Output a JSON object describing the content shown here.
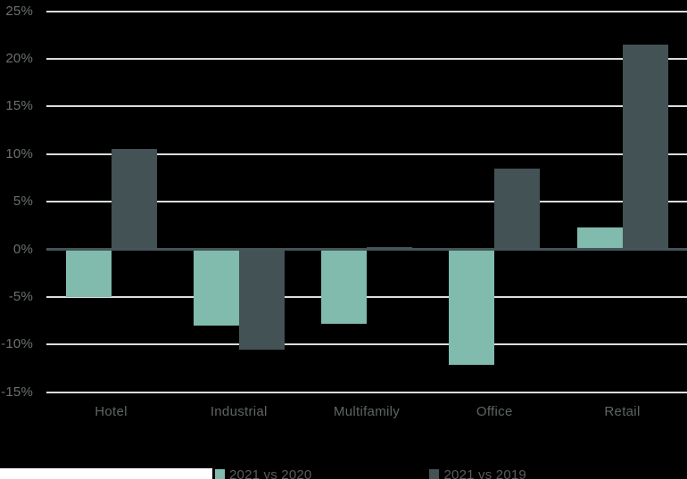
{
  "chart_data": {
    "type": "bar",
    "title": "",
    "categories": [
      "Hotel",
      "Industrial",
      "Multifamily",
      "Office",
      "Retail"
    ],
    "series": [
      {
        "name": "2021 vs 2020",
        "color": "#80BBAD",
        "values": [
          -5.0,
          -8.0,
          -7.8,
          -12.1,
          2.3
        ]
      },
      {
        "name": "2021 vs 2019",
        "color": "#435254",
        "values": [
          10.5,
          -10.5,
          0.2,
          8.5,
          21.5
        ]
      }
    ],
    "xlabel": "",
    "ylabel": "",
    "yticks": [
      25,
      20,
      15,
      10,
      5,
      0,
      -5,
      -10,
      -15
    ],
    "ytick_format": "percent",
    "ylim": [
      -15,
      25
    ],
    "grid": true,
    "background": "#000000",
    "gridline_color": "#d9dede",
    "zero_line_color": "#445559",
    "legend_position": "bottom"
  },
  "legend": {
    "items": [
      {
        "label": "2021 vs 2020",
        "color": "#80BBAD"
      },
      {
        "label": "2021 vs 2019",
        "color": "#435254"
      }
    ]
  }
}
